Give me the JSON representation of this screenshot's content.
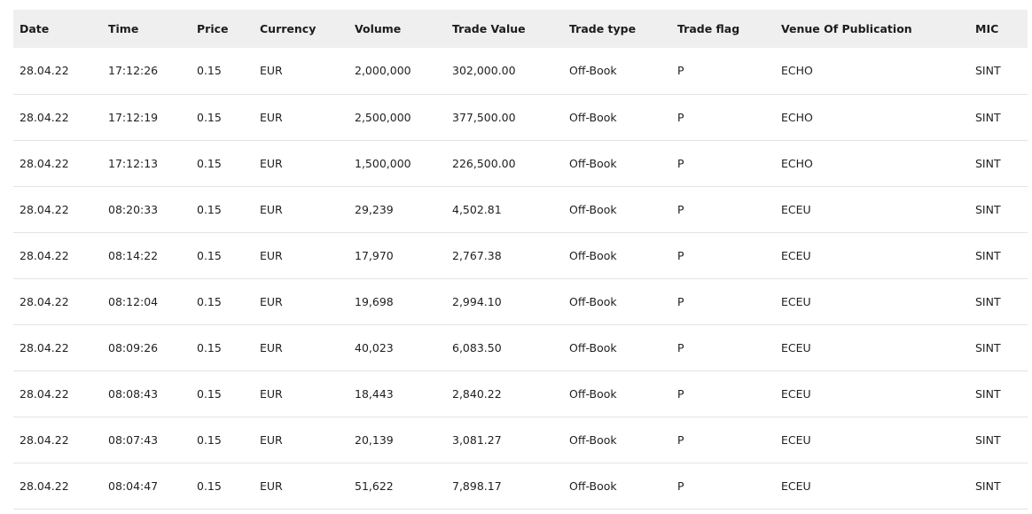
{
  "table": {
    "columns": [
      "Date",
      "Time",
      "Price",
      "Currency",
      "Volume",
      "Trade Value",
      "Trade type",
      "Trade flag",
      "Venue Of Publication",
      "MIC"
    ],
    "rows": [
      [
        "28.04.22",
        "17:12:26",
        "0.15",
        "EUR",
        "2,000,000",
        "302,000.00",
        "Off-Book",
        "P",
        "ECHO",
        "SINT"
      ],
      [
        "28.04.22",
        "17:12:19",
        "0.15",
        "EUR",
        "2,500,000",
        "377,500.00",
        "Off-Book",
        "P",
        "ECHO",
        "SINT"
      ],
      [
        "28.04.22",
        "17:12:13",
        "0.15",
        "EUR",
        "1,500,000",
        "226,500.00",
        "Off-Book",
        "P",
        "ECHO",
        "SINT"
      ],
      [
        "28.04.22",
        "08:20:33",
        "0.15",
        "EUR",
        "29,239",
        "4,502.81",
        "Off-Book",
        "P",
        "ECEU",
        "SINT"
      ],
      [
        "28.04.22",
        "08:14:22",
        "0.15",
        "EUR",
        "17,970",
        "2,767.38",
        "Off-Book",
        "P",
        "ECEU",
        "SINT"
      ],
      [
        "28.04.22",
        "08:12:04",
        "0.15",
        "EUR",
        "19,698",
        "2,994.10",
        "Off-Book",
        "P",
        "ECEU",
        "SINT"
      ],
      [
        "28.04.22",
        "08:09:26",
        "0.15",
        "EUR",
        "40,023",
        "6,083.50",
        "Off-Book",
        "P",
        "ECEU",
        "SINT"
      ],
      [
        "28.04.22",
        "08:08:43",
        "0.15",
        "EUR",
        "18,443",
        "2,840.22",
        "Off-Book",
        "P",
        "ECEU",
        "SINT"
      ],
      [
        "28.04.22",
        "08:07:43",
        "0.15",
        "EUR",
        "20,139",
        "3,081.27",
        "Off-Book",
        "P",
        "ECEU",
        "SINT"
      ],
      [
        "28.04.22",
        "08:04:47",
        "0.15",
        "EUR",
        "51,622",
        "7,898.17",
        "Off-Book",
        "P",
        "ECEU",
        "SINT"
      ]
    ]
  }
}
